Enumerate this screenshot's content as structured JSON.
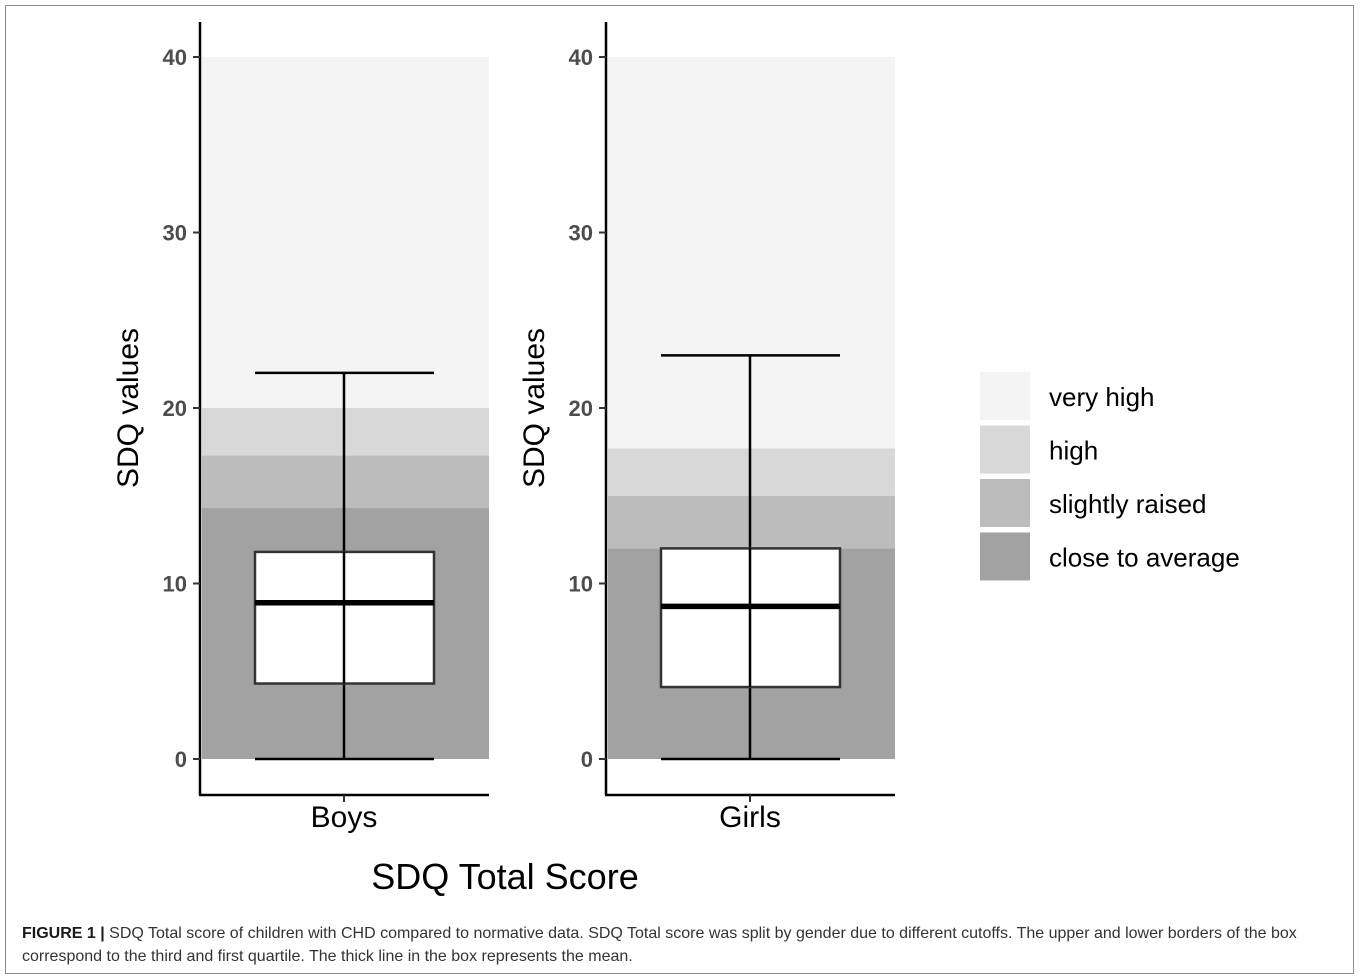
{
  "chart_data": [
    {
      "type": "box",
      "panel": "Boys",
      "categories": [
        "Boys"
      ],
      "ylabel": "SDQ values",
      "ylim": [
        0,
        40
      ],
      "yticks": [
        "0",
        "10",
        "20",
        "30",
        "40"
      ],
      "bands": [
        {
          "name": "close to average",
          "from": 0,
          "to": 14.3
        },
        {
          "name": "slightly raised",
          "from": 14.3,
          "to": 17.3
        },
        {
          "name": "high",
          "from": 17.3,
          "to": 20
        },
        {
          "name": "very high",
          "from": 20,
          "to": 40
        }
      ],
      "box": {
        "min": 0,
        "q1": 4.3,
        "mean": 8.9,
        "q3": 11.8,
        "max": 22
      }
    },
    {
      "type": "box",
      "panel": "Girls",
      "categories": [
        "Girls"
      ],
      "ylabel": "SDQ values",
      "ylim": [
        0,
        40
      ],
      "yticks": [
        "0",
        "10",
        "20",
        "30",
        "40"
      ],
      "bands": [
        {
          "name": "close to average",
          "from": 0,
          "to": 12
        },
        {
          "name": "slightly raised",
          "from": 12,
          "to": 15
        },
        {
          "name": "high",
          "from": 15,
          "to": 17.7
        },
        {
          "name": "very high",
          "from": 17.7,
          "to": 40
        }
      ],
      "box": {
        "min": 0,
        "q1": 4.1,
        "mean": 8.7,
        "q3": 12,
        "max": 23
      }
    }
  ],
  "xlabel": "SDQ Total Score",
  "legend": {
    "placement": "right",
    "items": [
      {
        "label": "very high",
        "color": "#f4f4f4"
      },
      {
        "label": "high",
        "color": "#d8d8d8"
      },
      {
        "label": "slightly raised",
        "color": "#bcbcbc"
      },
      {
        "label": "close to average",
        "color": "#a2a2a2"
      }
    ]
  },
  "caption": {
    "label": "FIGURE 1 |",
    "text": " SDQ Total score of children with CHD compared to normative data. SDQ Total score was split by gender due to different cutoffs. The upper and lower borders of the box correspond to the third and first quartile. The thick line in the box represents the mean."
  }
}
